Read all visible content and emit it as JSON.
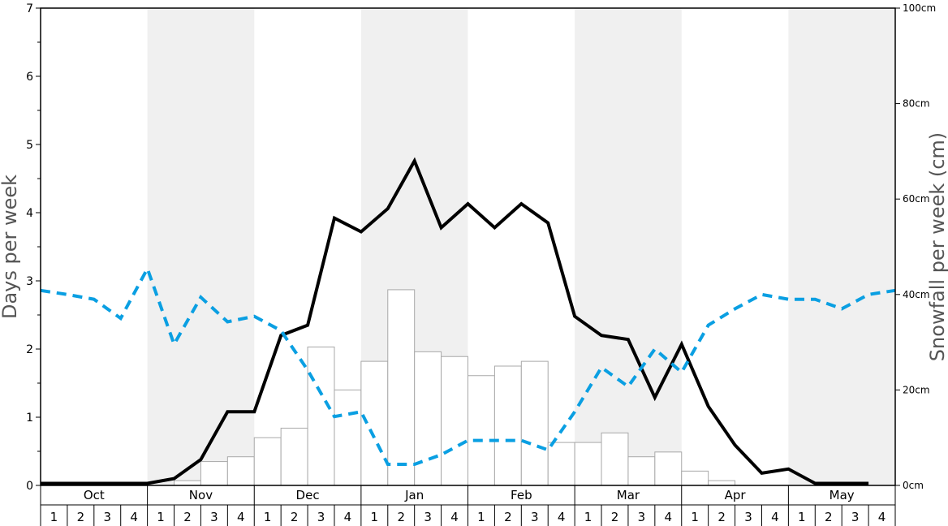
{
  "chart_data": {
    "type": "bar",
    "ylabel_left": "Days per week",
    "ylabel_right": "Snowfall per week (cm)",
    "left_axis": {
      "ylim": [
        0,
        7
      ],
      "ticks": [
        "0",
        "1",
        "2",
        "3",
        "4",
        "5",
        "6",
        "7"
      ]
    },
    "right_axis": {
      "ylim": [
        0,
        100
      ],
      "ticks": [
        "0cm",
        "20cm",
        "40cm",
        "60cm",
        "80cm",
        "100cm"
      ]
    },
    "months": [
      "Oct",
      "Nov",
      "Dec",
      "Jan",
      "Feb",
      "Mar",
      "Apr",
      "May"
    ],
    "week_labels": [
      "1",
      "2",
      "3",
      "4"
    ],
    "shaded_months": [
      "Nov",
      "Jan",
      "Mar",
      "May"
    ],
    "series": [
      {
        "kind": "bar",
        "axis": "right",
        "values": [
          0,
          0,
          0,
          0,
          0,
          1,
          5,
          6,
          10,
          12,
          29,
          20,
          26,
          41,
          28,
          27,
          23,
          25,
          26,
          9,
          9,
          11,
          6,
          7,
          3,
          1,
          0,
          0,
          0,
          0,
          0,
          0
        ]
      },
      {
        "kind": "line",
        "axis": "left",
        "color": "#000000",
        "style": "solid",
        "values": [
          0.03,
          0.03,
          0.03,
          0.03,
          0.03,
          0.1,
          0.38,
          1.08,
          1.08,
          2.2,
          2.35,
          3.92,
          3.72,
          4.06,
          4.76,
          3.78,
          4.13,
          3.78,
          4.13,
          3.85,
          2.48,
          2.2,
          2.14,
          1.29,
          2.07,
          1.16,
          0.59,
          0.18,
          0.24,
          0.03,
          0.03,
          0.03
        ]
      },
      {
        "kind": "line",
        "axis": "left",
        "color": "#0a9fe2",
        "style": "dashed",
        "values": [
          2.86,
          2.8,
          2.73,
          2.45,
          3.18,
          2.07,
          2.76,
          2.4,
          2.48,
          2.27,
          1.69,
          1.01,
          1.08,
          0.31,
          0.31,
          0.45,
          0.66,
          0.66,
          0.66,
          0.52,
          1.08,
          1.73,
          1.45,
          2.0,
          1.66,
          2.35,
          2.59,
          2.8,
          2.73,
          2.73,
          2.59,
          2.8,
          2.86
        ]
      }
    ]
  }
}
